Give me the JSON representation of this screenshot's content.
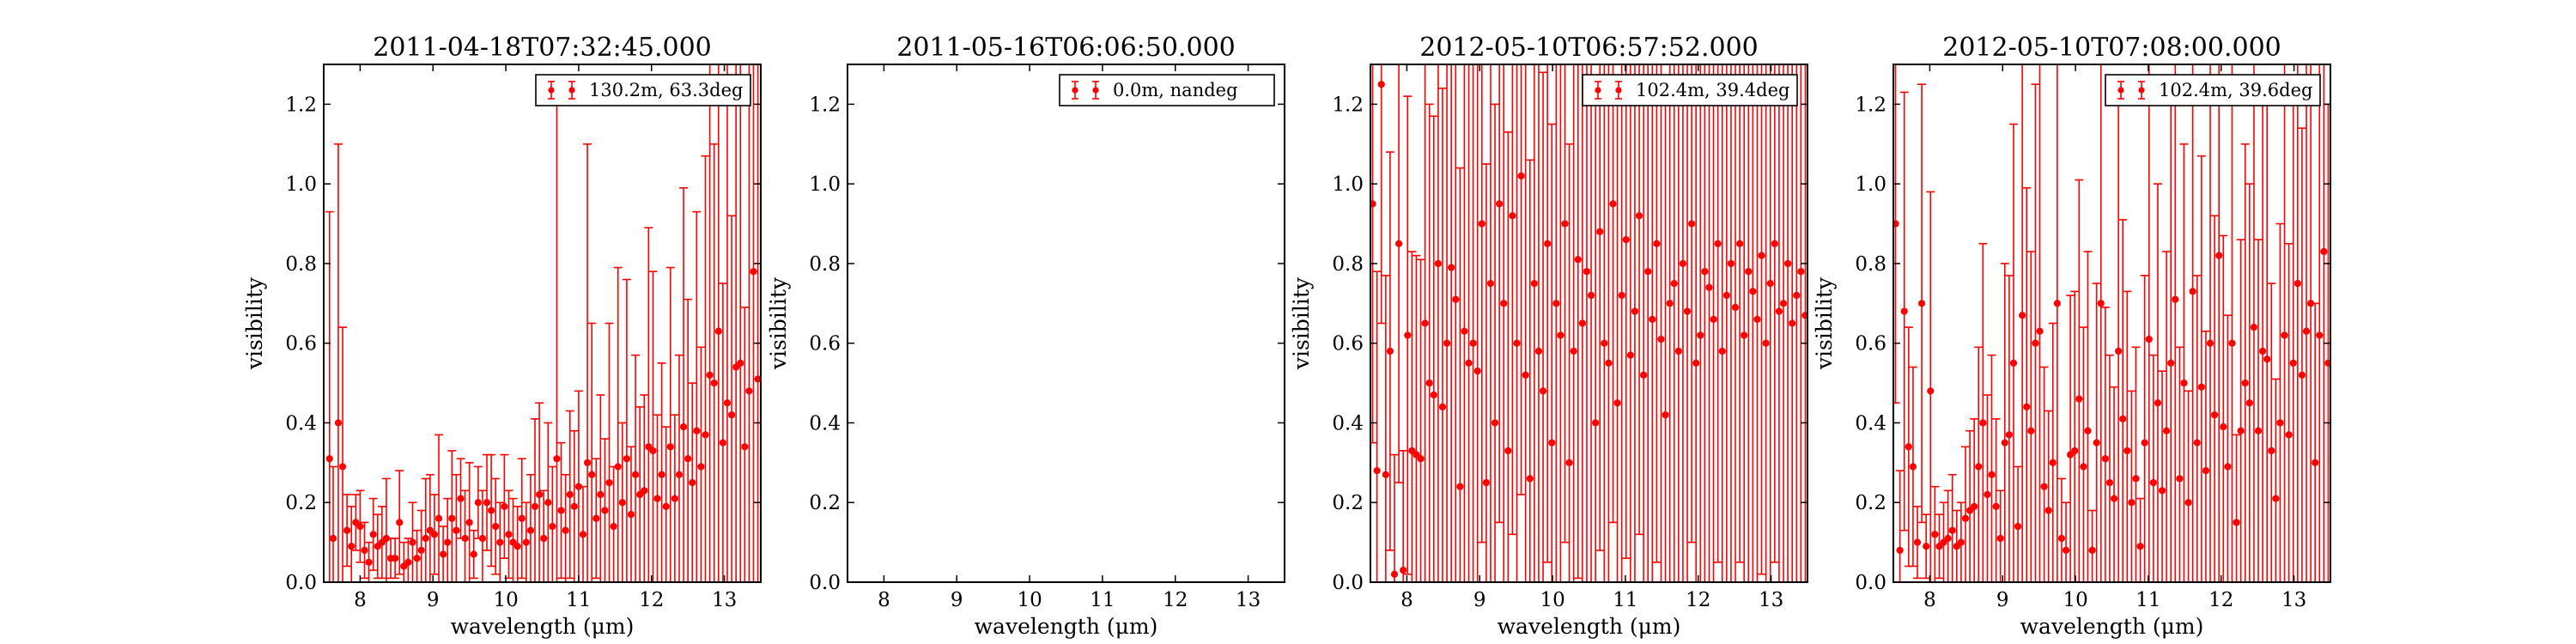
{
  "chart_data": [
    {
      "type": "scatter",
      "title": "2011-04-18T07:32:45.000",
      "xlabel": "wavelength (μm)",
      "ylabel": "visibility",
      "xlim": [
        7.5,
        13.5
      ],
      "ylim": [
        0.0,
        1.3
      ],
      "xticks": [
        8,
        9,
        10,
        11,
        12,
        13
      ],
      "yticks": [
        0.0,
        0.2,
        0.4,
        0.6,
        0.8,
        1.0,
        1.2
      ],
      "grid": false,
      "legend": {
        "position": "top-right",
        "entries": [
          "130.2m, 63.3deg"
        ]
      },
      "series": [
        {
          "name": "130.2m, 63.3deg",
          "color": "#ff0000",
          "x": [
            7.58,
            7.63,
            7.7,
            7.76,
            7.82,
            7.88,
            7.94,
            8.0,
            8.06,
            8.12,
            8.18,
            8.24,
            8.3,
            8.36,
            8.42,
            8.48,
            8.54,
            8.6,
            8.66,
            8.72,
            8.78,
            8.84,
            8.9,
            8.96,
            9.02,
            9.08,
            9.14,
            9.2,
            9.26,
            9.32,
            9.38,
            9.44,
            9.5,
            9.56,
            9.62,
            9.68,
            9.74,
            9.8,
            9.86,
            9.92,
            9.98,
            10.04,
            10.1,
            10.16,
            10.22,
            10.28,
            10.34,
            10.4,
            10.46,
            10.52,
            10.58,
            10.64,
            10.7,
            10.76,
            10.82,
            10.88,
            10.94,
            11.0,
            11.06,
            11.12,
            11.18,
            11.24,
            11.3,
            11.36,
            11.42,
            11.48,
            11.54,
            11.6,
            11.66,
            11.72,
            11.78,
            11.84,
            11.9,
            11.96,
            12.02,
            12.08,
            12.14,
            12.2,
            12.26,
            12.32,
            12.38,
            12.44,
            12.5,
            12.56,
            12.62,
            12.68,
            12.74,
            12.8,
            12.86,
            12.92,
            12.98,
            13.04,
            13.1,
            13.16,
            13.22,
            13.28,
            13.34,
            13.4,
            13.46
          ],
          "y": [
            0.31,
            0.11,
            0.4,
            0.29,
            0.13,
            0.09,
            0.15,
            0.14,
            0.08,
            0.05,
            0.12,
            0.09,
            0.1,
            0.11,
            0.06,
            0.06,
            0.15,
            0.04,
            0.05,
            0.1,
            0.06,
            0.08,
            0.11,
            0.13,
            0.12,
            0.16,
            0.07,
            0.1,
            0.16,
            0.13,
            0.21,
            0.11,
            0.15,
            0.07,
            0.2,
            0.11,
            0.2,
            0.18,
            0.14,
            0.1,
            0.19,
            0.12,
            0.1,
            0.09,
            0.16,
            0.1,
            0.13,
            0.19,
            0.22,
            0.11,
            0.2,
            0.14,
            0.31,
            0.18,
            0.13,
            0.22,
            0.19,
            0.24,
            0.12,
            0.3,
            0.27,
            0.16,
            0.22,
            0.18,
            0.25,
            0.14,
            0.29,
            0.2,
            0.31,
            0.17,
            0.27,
            0.22,
            0.23,
            0.34,
            0.33,
            0.21,
            0.27,
            0.19,
            0.34,
            0.21,
            0.27,
            0.39,
            0.31,
            0.25,
            0.38,
            0.29,
            0.37,
            0.52,
            0.5,
            0.63,
            0.35,
            0.45,
            0.42,
            0.54,
            0.55,
            0.34,
            0.48,
            0.78,
            0.51
          ],
          "yerr": [
            0.62,
            0.18,
            0.7,
            0.35,
            0.09,
            0.1,
            0.07,
            0.09,
            0.07,
            0.05,
            0.09,
            0.08,
            0.09,
            0.15,
            0.05,
            0.05,
            0.13,
            0.06,
            0.06,
            0.1,
            0.07,
            0.1,
            0.15,
            0.14,
            0.1,
            0.21,
            0.07,
            0.11,
            0.17,
            0.14,
            0.1,
            0.12,
            0.15,
            0.06,
            0.09,
            0.12,
            0.12,
            0.14,
            0.12,
            0.1,
            0.13,
            0.11,
            0.11,
            0.1,
            0.15,
            0.1,
            0.14,
            0.22,
            0.23,
            0.12,
            0.2,
            0.15,
            0.9,
            0.17,
            0.14,
            0.21,
            0.19,
            0.24,
            0.12,
            0.8,
            0.38,
            0.15,
            0.25,
            0.18,
            0.4,
            0.15,
            0.5,
            0.2,
            0.45,
            0.17,
            0.3,
            0.22,
            0.24,
            0.55,
            0.45,
            0.21,
            0.28,
            0.2,
            0.45,
            0.21,
            0.3,
            0.6,
            0.4,
            0.25,
            0.55,
            0.3,
            0.7,
            0.8,
            0.6,
            0.8,
            0.4,
            0.9,
            0.5,
            0.8,
            0.75,
            0.35,
            0.9,
            1.0,
            0.8
          ]
        }
      ]
    },
    {
      "type": "scatter",
      "title": "2011-05-16T06:06:50.000",
      "xlabel": "wavelength (μm)",
      "ylabel": "visibility",
      "xlim": [
        7.5,
        13.5
      ],
      "ylim": [
        0.0,
        1.3
      ],
      "xticks": [
        8,
        9,
        10,
        11,
        12,
        13
      ],
      "yticks": [
        0.0,
        0.2,
        0.4,
        0.6,
        0.8,
        1.0,
        1.2
      ],
      "grid": false,
      "legend": {
        "position": "top-right",
        "entries": [
          "0.0m, nandeg"
        ]
      },
      "series": [
        {
          "name": "0.0m, nandeg",
          "color": "#ff0000",
          "x": [],
          "y": [],
          "yerr": []
        }
      ]
    },
    {
      "type": "scatter",
      "title": "2012-05-10T06:57:52.000",
      "xlabel": "wavelength (μm)",
      "ylabel": "visibility",
      "xlim": [
        7.5,
        13.5
      ],
      "ylim": [
        0.0,
        1.3
      ],
      "xticks": [
        8,
        9,
        10,
        11,
        12,
        13
      ],
      "yticks": [
        0.0,
        0.2,
        0.4,
        0.6,
        0.8,
        1.0,
        1.2
      ],
      "grid": false,
      "legend": {
        "position": "top-right",
        "entries": [
          "102.4m, 39.4deg"
        ]
      },
      "series": [
        {
          "name": "102.4m, 39.4deg",
          "color": "#ff0000",
          "x": [
            7.53,
            7.59,
            7.65,
            7.71,
            7.77,
            7.83,
            7.89,
            7.95,
            8.01,
            8.07,
            8.13,
            8.19,
            8.25,
            8.31,
            8.37,
            8.43,
            8.49,
            8.55,
            8.61,
            8.67,
            8.73,
            8.79,
            8.85,
            8.91,
            8.97,
            9.03,
            9.09,
            9.15,
            9.21,
            9.27,
            9.33,
            9.39,
            9.45,
            9.51,
            9.57,
            9.63,
            9.69,
            9.75,
            9.81,
            9.87,
            9.93,
            9.99,
            10.05,
            10.11,
            10.17,
            10.23,
            10.29,
            10.35,
            10.41,
            10.47,
            10.53,
            10.59,
            10.65,
            10.71,
            10.77,
            10.83,
            10.89,
            10.95,
            11.01,
            11.07,
            11.13,
            11.19,
            11.25,
            11.31,
            11.37,
            11.43,
            11.49,
            11.55,
            11.61,
            11.67,
            11.73,
            11.79,
            11.85,
            11.91,
            11.97,
            12.03,
            12.09,
            12.15,
            12.21,
            12.27,
            12.33,
            12.39,
            12.45,
            12.51,
            12.57,
            12.63,
            12.69,
            12.75,
            12.81,
            12.87,
            12.93,
            12.99,
            13.05,
            13.11,
            13.17,
            13.23,
            13.29,
            13.35,
            13.41,
            13.47
          ],
          "y": [
            0.95,
            0.28,
            1.25,
            0.27,
            0.58,
            0.02,
            0.85,
            0.03,
            0.62,
            0.33,
            0.32,
            0.31,
            0.65,
            0.5,
            0.47,
            0.8,
            0.44,
            0.6,
            0.79,
            0.71,
            0.24,
            0.63,
            0.55,
            0.6,
            0.53,
            0.9,
            0.25,
            0.75,
            0.4,
            0.95,
            0.7,
            0.33,
            0.92,
            0.6,
            1.02,
            0.52,
            0.26,
            0.75,
            0.58,
            0.48,
            0.85,
            0.35,
            0.7,
            0.62,
            0.9,
            0.3,
            0.58,
            0.81,
            0.65,
            0.78,
            0.72,
            0.4,
            0.88,
            0.6,
            0.55,
            0.95,
            0.45,
            0.72,
            0.86,
            0.57,
            0.68,
            0.92,
            0.52,
            0.78,
            0.66,
            0.85,
            0.61,
            0.42,
            0.7,
            0.75,
            0.58,
            0.8,
            0.68,
            0.9,
            0.55,
            0.62,
            0.78,
            0.74,
            0.66,
            0.85,
            0.58,
            0.72,
            0.8,
            0.69,
            0.85,
            0.62,
            0.78,
            0.73,
            0.66,
            0.82,
            0.6,
            0.75,
            0.85,
            0.68,
            0.7,
            0.8,
            0.65,
            0.72,
            0.78,
            0.67
          ],
          "yerr": [
            0.6,
            0.5,
            0.6,
            0.5,
            0.5,
            0.3,
            0.6,
            0.3,
            0.6,
            0.5,
            0.5,
            0.5,
            0.7,
            0.7,
            0.7,
            0.8,
            0.8,
            0.8,
            0.8,
            0.8,
            0.8,
            0.8,
            0.8,
            0.8,
            0.8,
            0.8,
            0.8,
            0.8,
            0.8,
            0.8,
            0.8,
            0.8,
            0.8,
            0.8,
            0.8,
            0.8,
            0.8,
            0.8,
            0.8,
            0.8,
            0.8,
            0.8,
            0.8,
            0.8,
            0.8,
            0.8,
            0.8,
            0.8,
            0.8,
            0.8,
            0.8,
            0.8,
            0.8,
            0.8,
            0.8,
            0.8,
            0.8,
            0.8,
            0.8,
            0.8,
            0.8,
            0.8,
            0.8,
            0.8,
            0.8,
            0.8,
            0.8,
            0.8,
            0.8,
            0.8,
            0.8,
            0.8,
            0.8,
            0.8,
            0.8,
            0.8,
            0.8,
            0.8,
            0.8,
            0.8,
            0.8,
            0.8,
            0.8,
            0.8,
            0.8,
            0.8,
            0.8,
            0.8,
            0.8,
            0.8,
            0.8,
            0.8,
            0.8,
            0.8,
            0.8,
            0.8,
            0.8,
            0.8,
            0.8,
            0.8
          ]
        }
      ]
    },
    {
      "type": "scatter",
      "title": "2012-05-10T07:08:00.000",
      "xlabel": "wavelength (μm)",
      "ylabel": "visibility",
      "xlim": [
        7.5,
        13.5
      ],
      "ylim": [
        0.0,
        1.3
      ],
      "xticks": [
        8,
        9,
        10,
        11,
        12,
        13
      ],
      "yticks": [
        0.0,
        0.2,
        0.4,
        0.6,
        0.8,
        1.0,
        1.2
      ],
      "grid": false,
      "legend": {
        "position": "top-right",
        "entries": [
          "102.4m, 39.6deg"
        ]
      },
      "series": [
        {
          "name": "102.4m, 39.6deg",
          "color": "#ff0000",
          "x": [
            7.53,
            7.59,
            7.65,
            7.71,
            7.77,
            7.83,
            7.89,
            7.95,
            8.01,
            8.07,
            8.13,
            8.19,
            8.25,
            8.31,
            8.37,
            8.43,
            8.49,
            8.55,
            8.61,
            8.67,
            8.73,
            8.79,
            8.85,
            8.91,
            8.97,
            9.03,
            9.09,
            9.15,
            9.21,
            9.27,
            9.33,
            9.39,
            9.45,
            9.51,
            9.57,
            9.63,
            9.69,
            9.75,
            9.81,
            9.87,
            9.93,
            9.99,
            10.05,
            10.11,
            10.17,
            10.23,
            10.29,
            10.35,
            10.41,
            10.47,
            10.53,
            10.59,
            10.65,
            10.71,
            10.77,
            10.83,
            10.89,
            10.95,
            11.01,
            11.07,
            11.13,
            11.19,
            11.25,
            11.31,
            11.37,
            11.43,
            11.49,
            11.55,
            11.61,
            11.67,
            11.73,
            11.79,
            11.85,
            11.91,
            11.97,
            12.03,
            12.09,
            12.15,
            12.21,
            12.27,
            12.33,
            12.39,
            12.45,
            12.51,
            12.57,
            12.63,
            12.69,
            12.75,
            12.81,
            12.87,
            12.93,
            12.99,
            13.05,
            13.11,
            13.17,
            13.23,
            13.29,
            13.35,
            13.41,
            13.47
          ],
          "y": [
            0.9,
            0.08,
            0.68,
            0.34,
            0.29,
            0.1,
            0.7,
            0.09,
            0.48,
            0.12,
            0.09,
            0.1,
            0.11,
            0.13,
            0.09,
            0.1,
            0.16,
            0.18,
            0.19,
            0.29,
            0.4,
            0.22,
            0.27,
            0.19,
            0.11,
            0.35,
            0.37,
            0.55,
            0.14,
            0.67,
            0.44,
            0.38,
            0.6,
            0.63,
            0.24,
            0.18,
            0.3,
            0.7,
            0.11,
            0.08,
            0.32,
            0.33,
            0.46,
            0.29,
            0.38,
            0.08,
            0.35,
            0.7,
            0.31,
            0.25,
            0.21,
            0.58,
            0.41,
            0.33,
            0.2,
            0.26,
            0.09,
            0.35,
            0.61,
            0.25,
            0.45,
            0.23,
            0.38,
            0.55,
            0.71,
            0.26,
            0.5,
            0.2,
            0.73,
            0.35,
            0.49,
            0.28,
            0.6,
            0.42,
            0.82,
            0.39,
            0.29,
            0.6,
            0.15,
            0.38,
            0.5,
            0.45,
            0.64,
            0.38,
            0.58,
            0.56,
            0.33,
            0.21,
            0.4,
            0.62,
            0.37,
            0.55,
            0.75,
            0.52,
            0.63,
            0.7,
            0.3,
            0.62,
            0.83,
            0.55
          ],
          "yerr": [
            0.45,
            0.2,
            0.55,
            0.3,
            0.25,
            0.09,
            0.55,
            0.08,
            0.5,
            0.12,
            0.08,
            0.1,
            0.12,
            0.14,
            0.09,
            0.1,
            0.18,
            0.2,
            0.22,
            0.3,
            0.45,
            0.25,
            0.3,
            0.22,
            0.12,
            0.45,
            0.4,
            0.6,
            0.15,
            0.7,
            0.55,
            0.45,
            0.65,
            0.7,
            0.3,
            0.25,
            0.35,
            0.75,
            0.15,
            0.12,
            0.4,
            0.4,
            0.55,
            0.35,
            0.45,
            0.1,
            0.4,
            0.75,
            0.38,
            0.32,
            0.28,
            0.65,
            0.5,
            0.4,
            0.28,
            0.33,
            0.12,
            0.42,
            0.7,
            0.32,
            0.55,
            0.3,
            0.45,
            0.65,
            0.8,
            0.33,
            0.6,
            0.28,
            0.8,
            0.42,
            0.58,
            0.35,
            0.7,
            0.5,
            0.9,
            0.48,
            0.38,
            0.7,
            0.22,
            0.48,
            0.6,
            0.55,
            0.75,
            0.48,
            0.68,
            0.65,
            0.42,
            0.3,
            0.5,
            0.72,
            0.48,
            0.65,
            0.85,
            0.62,
            0.73,
            0.8,
            0.4,
            0.72,
            0.9,
            0.65
          ]
        }
      ]
    }
  ]
}
